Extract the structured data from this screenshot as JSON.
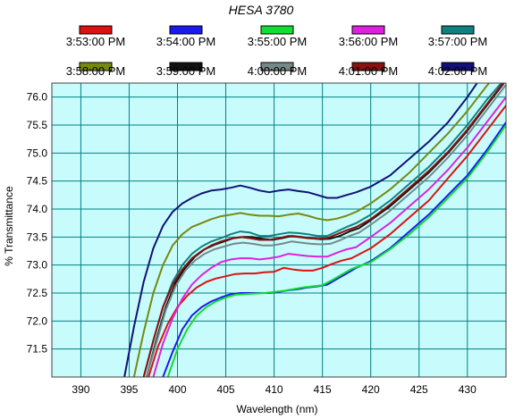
{
  "chart_data": {
    "type": "line",
    "title": "HESA 3780",
    "xlabel": "Wavelength (nm)",
    "ylabel": "% Transmittance",
    "xlim": [
      387,
      434
    ],
    "ylim": [
      71.0,
      76.25
    ],
    "x_ticks": [
      390,
      395,
      400,
      405,
      410,
      415,
      420,
      425,
      430
    ],
    "y_ticks": [
      71.5,
      72.0,
      72.5,
      73.0,
      73.5,
      74.0,
      74.5,
      75.0,
      75.5,
      76.0
    ],
    "x_tick_labels": [
      "390",
      "395",
      "400",
      "405",
      "410",
      "415",
      "420",
      "425",
      "430"
    ],
    "y_tick_labels": [
      "71.5",
      "72.0",
      "72.5",
      "73.0",
      "73.5",
      "74.0",
      "74.5",
      "75.0",
      "75.5",
      "76.0"
    ],
    "grid": true,
    "legend_position": "top",
    "plot_background": "#c8fcfc",
    "grid_color": "#008080",
    "series": [
      {
        "name": "3:53:00 PM",
        "color": "#dd1111",
        "x": [
          397.0,
          398.0,
          399.0,
          400.0,
          401.0,
          402.0,
          403.0,
          404.0,
          405.0,
          406.0,
          407.0,
          408.0,
          409.0,
          410.0,
          411.0,
          412.0,
          413.0,
          414.0,
          415.0,
          416.0,
          417.0,
          418.0,
          420.0,
          422.0,
          424.0,
          426.0,
          428.0,
          430.0,
          432.0,
          434.0
        ],
        "y": [
          71.0,
          71.55,
          71.95,
          72.25,
          72.45,
          72.6,
          72.7,
          72.76,
          72.8,
          72.84,
          72.85,
          72.85,
          72.87,
          72.88,
          72.95,
          72.92,
          72.9,
          72.9,
          72.95,
          73.02,
          73.08,
          73.12,
          73.3,
          73.55,
          73.85,
          74.15,
          74.55,
          74.95,
          75.4,
          75.85
        ]
      },
      {
        "name": "3:54:00 PM",
        "color": "#1a1aee",
        "x": [
          398.5,
          399.5,
          400.5,
          401.5,
          402.5,
          403.5,
          404.5,
          405.5,
          406.5,
          407.5,
          408.5,
          409.5,
          410.5,
          411.5,
          412.5,
          413.5,
          414.5,
          415.5,
          416.5,
          417.5,
          418.5,
          420.0,
          422.0,
          424.0,
          426.0,
          428.0,
          430.0,
          432.0,
          434.0
        ],
        "y": [
          71.0,
          71.45,
          71.85,
          72.1,
          72.25,
          72.35,
          72.42,
          72.48,
          72.5,
          72.5,
          72.5,
          72.5,
          72.52,
          72.55,
          72.57,
          72.6,
          72.62,
          72.65,
          72.75,
          72.85,
          72.95,
          73.07,
          73.3,
          73.6,
          73.9,
          74.25,
          74.6,
          75.05,
          75.55
        ]
      },
      {
        "name": "3:55:00 PM",
        "color": "#11dd33",
        "x": [
          399.0,
          400.0,
          401.0,
          402.0,
          403.0,
          404.0,
          405.0,
          406.0,
          407.0,
          408.0,
          409.0,
          410.0,
          411.0,
          412.0,
          413.0,
          414.0,
          415.0,
          416.0,
          417.0,
          418.0,
          420.0,
          422.0,
          424.0,
          426.0,
          428.0,
          430.0,
          432.0,
          434.0
        ],
        "y": [
          71.0,
          71.5,
          71.85,
          72.1,
          72.25,
          72.35,
          72.42,
          72.47,
          72.48,
          72.49,
          72.5,
          72.52,
          72.54,
          72.57,
          72.6,
          72.62,
          72.64,
          72.73,
          72.83,
          72.93,
          73.05,
          73.28,
          73.55,
          73.85,
          74.2,
          74.55,
          75.0,
          75.5
        ]
      },
      {
        "name": "3:56:00 PM",
        "color": "#dd22dd",
        "x": [
          397.5,
          398.5,
          399.5,
          400.5,
          401.5,
          402.5,
          403.5,
          404.5,
          405.5,
          406.5,
          407.5,
          408.5,
          409.5,
          410.5,
          411.5,
          412.5,
          413.5,
          414.5,
          415.5,
          416.5,
          417.5,
          418.5,
          420.0,
          422.0,
          424.0,
          426.0,
          428.0,
          430.0,
          432.0,
          434.0
        ],
        "y": [
          71.0,
          71.6,
          72.05,
          72.4,
          72.65,
          72.82,
          72.95,
          73.05,
          73.1,
          73.12,
          73.12,
          73.1,
          73.12,
          73.15,
          73.2,
          73.18,
          73.16,
          73.15,
          73.15,
          73.22,
          73.28,
          73.32,
          73.5,
          73.75,
          74.05,
          74.35,
          74.7,
          75.1,
          75.55,
          76.0
        ]
      },
      {
        "name": "3:57:00 PM",
        "color": "#118080",
        "x": [
          396.5,
          397.5,
          398.5,
          399.5,
          400.5,
          401.5,
          402.5,
          403.5,
          404.5,
          405.5,
          406.5,
          407.5,
          408.5,
          409.5,
          410.5,
          411.5,
          412.5,
          413.5,
          414.5,
          415.5,
          416.5,
          417.5,
          418.5,
          420.0,
          422.0,
          424.0,
          426.0,
          428.0,
          430.0,
          432.0,
          434.0
        ],
        "y": [
          71.0,
          71.65,
          72.25,
          72.7,
          73.0,
          73.2,
          73.33,
          73.42,
          73.48,
          73.55,
          73.6,
          73.58,
          73.52,
          73.52,
          73.55,
          73.58,
          73.57,
          73.55,
          73.52,
          73.52,
          73.6,
          73.68,
          73.75,
          73.9,
          74.15,
          74.45,
          74.75,
          75.1,
          75.5,
          75.95,
          76.35
        ]
      },
      {
        "name": "3:58:00 PM",
        "color": "#778811",
        "x": [
          395.5,
          396.5,
          397.5,
          398.5,
          399.5,
          400.5,
          401.5,
          402.5,
          403.5,
          404.5,
          405.5,
          406.5,
          407.5,
          408.5,
          409.5,
          410.5,
          411.5,
          412.5,
          413.5,
          414.5,
          415.5,
          416.5,
          417.5,
          418.5,
          420.0,
          422.0,
          424.0,
          426.0,
          428.0,
          430.0,
          432.0,
          434.0
        ],
        "y": [
          71.0,
          71.8,
          72.5,
          73.0,
          73.35,
          73.55,
          73.68,
          73.75,
          73.82,
          73.87,
          73.9,
          73.93,
          73.9,
          73.88,
          73.88,
          73.87,
          73.9,
          73.92,
          73.88,
          73.83,
          73.8,
          73.83,
          73.88,
          73.95,
          74.1,
          74.35,
          74.65,
          75.0,
          75.35,
          75.75,
          76.2,
          76.6
        ]
      },
      {
        "name": "3:59:00 PM",
        "color": "#111111",
        "x": [
          396.8,
          397.8,
          398.8,
          399.8,
          400.8,
          401.8,
          402.8,
          403.8,
          404.8,
          405.8,
          406.8,
          407.8,
          408.8,
          409.8,
          410.8,
          411.8,
          412.8,
          413.8,
          414.8,
          415.8,
          416.8,
          417.8,
          418.8,
          420.0,
          422.0,
          424.0,
          426.0,
          428.0,
          430.0,
          432.0,
          434.0
        ],
        "y": [
          71.0,
          71.65,
          72.25,
          72.68,
          72.95,
          73.15,
          73.28,
          73.36,
          73.42,
          73.48,
          73.5,
          73.5,
          73.47,
          73.45,
          73.48,
          73.52,
          73.5,
          73.48,
          73.46,
          73.47,
          73.52,
          73.6,
          73.66,
          73.8,
          74.05,
          74.35,
          74.65,
          75.0,
          75.4,
          75.85,
          76.3
        ]
      },
      {
        "name": "4:00:00 PM",
        "color": "#778888",
        "x": [
          396.8,
          397.8,
          398.8,
          399.8,
          400.8,
          401.8,
          402.8,
          403.8,
          404.8,
          405.8,
          406.8,
          407.8,
          408.8,
          409.8,
          410.8,
          411.8,
          412.8,
          413.8,
          414.8,
          415.8,
          416.8,
          417.8,
          418.8,
          420.0,
          422.0,
          424.0,
          426.0,
          428.0,
          430.0,
          432.0,
          434.0
        ],
        "y": [
          71.0,
          71.6,
          72.2,
          72.62,
          72.9,
          73.08,
          73.2,
          73.28,
          73.33,
          73.38,
          73.4,
          73.38,
          73.35,
          73.35,
          73.38,
          73.42,
          73.4,
          73.38,
          73.37,
          73.38,
          73.44,
          73.52,
          73.58,
          73.72,
          73.97,
          74.27,
          74.57,
          74.92,
          75.32,
          75.77,
          76.22
        ]
      },
      {
        "name": "4:01:00 PM",
        "color": "#881111",
        "x": [
          396.5,
          397.5,
          398.5,
          399.5,
          400.5,
          401.5,
          402.5,
          403.5,
          404.5,
          405.5,
          406.5,
          407.5,
          408.5,
          409.5,
          410.5,
          411.5,
          412.5,
          413.5,
          414.5,
          415.5,
          416.5,
          417.5,
          418.5,
          420.0,
          422.0,
          424.0,
          426.0,
          428.0,
          430.0,
          432.0,
          434.0
        ],
        "y": [
          71.0,
          71.65,
          72.25,
          72.65,
          72.92,
          73.12,
          73.25,
          73.35,
          73.42,
          73.47,
          73.5,
          73.48,
          73.45,
          73.45,
          73.48,
          73.52,
          73.5,
          73.48,
          73.47,
          73.48,
          73.55,
          73.62,
          73.68,
          73.82,
          74.08,
          74.38,
          74.68,
          75.02,
          75.42,
          75.87,
          76.32
        ]
      },
      {
        "name": "4:02:00 PM",
        "color": "#111177",
        "x": [
          394.5,
          395.5,
          396.5,
          397.5,
          398.5,
          399.5,
          400.5,
          401.5,
          402.5,
          403.5,
          404.5,
          405.5,
          406.5,
          407.5,
          408.5,
          409.5,
          410.5,
          411.5,
          412.5,
          413.5,
          414.5,
          415.5,
          416.5,
          417.5,
          418.5,
          420.0,
          422.0,
          424.0,
          426.0,
          428.0,
          430.0,
          432.0,
          434.0
        ],
        "y": [
          71.0,
          71.9,
          72.7,
          73.3,
          73.7,
          73.95,
          74.1,
          74.2,
          74.28,
          74.33,
          74.35,
          74.38,
          74.42,
          74.38,
          74.33,
          74.3,
          74.33,
          74.35,
          74.32,
          74.3,
          74.25,
          74.2,
          74.2,
          74.25,
          74.3,
          74.4,
          74.6,
          74.9,
          75.2,
          75.55,
          76.0,
          76.5,
          77.0
        ]
      }
    ]
  }
}
